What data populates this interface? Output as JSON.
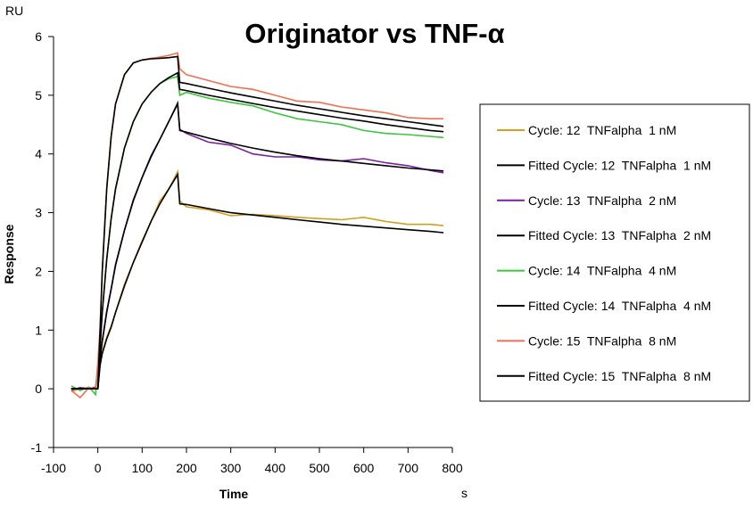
{
  "chart_data": {
    "type": "line",
    "title": "Originator vs TNF-α",
    "y_unit": "RU",
    "x_unit": "s",
    "xlabel": "Time",
    "ylabel": "Response",
    "xlim": [
      -100,
      800
    ],
    "ylim": [
      -1,
      6
    ],
    "xticks": [
      -100,
      0,
      100,
      200,
      300,
      400,
      500,
      600,
      700,
      800
    ],
    "yticks": [
      -1,
      0,
      1,
      2,
      3,
      4,
      5,
      6
    ],
    "legend": "right",
    "x": [
      -60,
      -40,
      -20,
      -5,
      0,
      5,
      10,
      20,
      30,
      40,
      60,
      80,
      100,
      120,
      140,
      160,
      180,
      185,
      200,
      250,
      300,
      350,
      400,
      450,
      500,
      550,
      600,
      650,
      700,
      750,
      780
    ],
    "series": [
      {
        "name": "Cycle: 12  TNFalpha  1 nM",
        "color": "#d4a020",
        "values": [
          -0.05,
          0.0,
          0.02,
          0.0,
          0.3,
          0.45,
          0.62,
          0.88,
          1.07,
          1.3,
          1.78,
          2.15,
          2.52,
          2.85,
          3.2,
          3.4,
          3.7,
          3.2,
          3.1,
          3.05,
          2.95,
          2.97,
          2.95,
          2.92,
          2.9,
          2.88,
          2.92,
          2.85,
          2.8,
          2.8,
          2.78
        ]
      },
      {
        "name": "Fitted Cycle: 12  TNFalpha  1 nM",
        "color": "#000000",
        "values": [
          0,
          0,
          0,
          0,
          0,
          0.4,
          0.6,
          0.85,
          1.05,
          1.3,
          1.75,
          2.15,
          2.5,
          2.85,
          3.15,
          3.4,
          3.65,
          3.15,
          3.14,
          3.07,
          3.0,
          2.96,
          2.92,
          2.88,
          2.84,
          2.8,
          2.77,
          2.74,
          2.71,
          2.68,
          2.66
        ]
      },
      {
        "name": "Cycle: 13  TNFalpha  2 nM",
        "color": "#7a1fa0",
        "values": [
          -0.02,
          0.02,
          0.0,
          0.03,
          0.35,
          0.55,
          0.82,
          1.32,
          1.7,
          2.12,
          2.7,
          3.22,
          3.6,
          3.97,
          4.25,
          4.55,
          4.87,
          4.42,
          4.35,
          4.2,
          4.15,
          4.0,
          3.95,
          3.95,
          3.9,
          3.88,
          3.92,
          3.85,
          3.8,
          3.72,
          3.68
        ]
      },
      {
        "name": "Fitted Cycle: 13  TNFalpha  2 nM",
        "color": "#000000",
        "values": [
          0,
          0,
          0,
          0,
          0,
          0.5,
          0.8,
          1.3,
          1.7,
          2.1,
          2.7,
          3.2,
          3.6,
          3.95,
          4.25,
          4.55,
          4.85,
          4.4,
          4.37,
          4.27,
          4.18,
          4.1,
          4.03,
          3.97,
          3.92,
          3.88,
          3.84,
          3.8,
          3.76,
          3.73,
          3.71
        ]
      },
      {
        "name": "Cycle: 14  TNFalpha  4 nM",
        "color": "#3cc63c",
        "values": [
          0.05,
          -0.03,
          0.03,
          -0.1,
          0.4,
          0.75,
          1.3,
          2.2,
          2.9,
          3.42,
          4.1,
          4.55,
          4.85,
          5.05,
          5.2,
          5.28,
          5.32,
          5.0,
          5.05,
          4.95,
          4.88,
          4.82,
          4.7,
          4.6,
          4.55,
          4.5,
          4.4,
          4.35,
          4.33,
          4.3,
          4.28
        ]
      },
      {
        "name": "Fitted Cycle: 14  TNFalpha  4 nM",
        "color": "#000000",
        "values": [
          0,
          0,
          0,
          0,
          0,
          0.7,
          1.3,
          2.2,
          2.9,
          3.4,
          4.1,
          4.55,
          4.85,
          5.05,
          5.2,
          5.3,
          5.38,
          5.1,
          5.08,
          5.0,
          4.93,
          4.86,
          4.79,
          4.73,
          4.67,
          4.61,
          4.56,
          4.5,
          4.45,
          4.4,
          4.38
        ]
      },
      {
        "name": "Cycle: 15  TNFalpha  8 nM",
        "color": "#f07050",
        "values": [
          -0.03,
          -0.15,
          0.02,
          0.0,
          0.45,
          1.05,
          2.0,
          3.4,
          4.3,
          4.85,
          5.35,
          5.55,
          5.6,
          5.63,
          5.65,
          5.68,
          5.72,
          5.45,
          5.35,
          5.25,
          5.15,
          5.1,
          5.0,
          4.9,
          4.88,
          4.8,
          4.75,
          4.7,
          4.62,
          4.6,
          4.6
        ]
      },
      {
        "name": "Fitted Cycle: 15  TNFalpha  8 nM",
        "color": "#000000",
        "values": [
          0,
          0,
          0,
          0,
          0,
          1.0,
          2.0,
          3.4,
          4.3,
          4.85,
          5.35,
          5.55,
          5.6,
          5.62,
          5.63,
          5.64,
          5.66,
          5.22,
          5.2,
          5.12,
          5.04,
          4.97,
          4.9,
          4.83,
          4.77,
          4.71,
          4.65,
          4.6,
          4.55,
          4.5,
          4.47
        ]
      }
    ]
  }
}
